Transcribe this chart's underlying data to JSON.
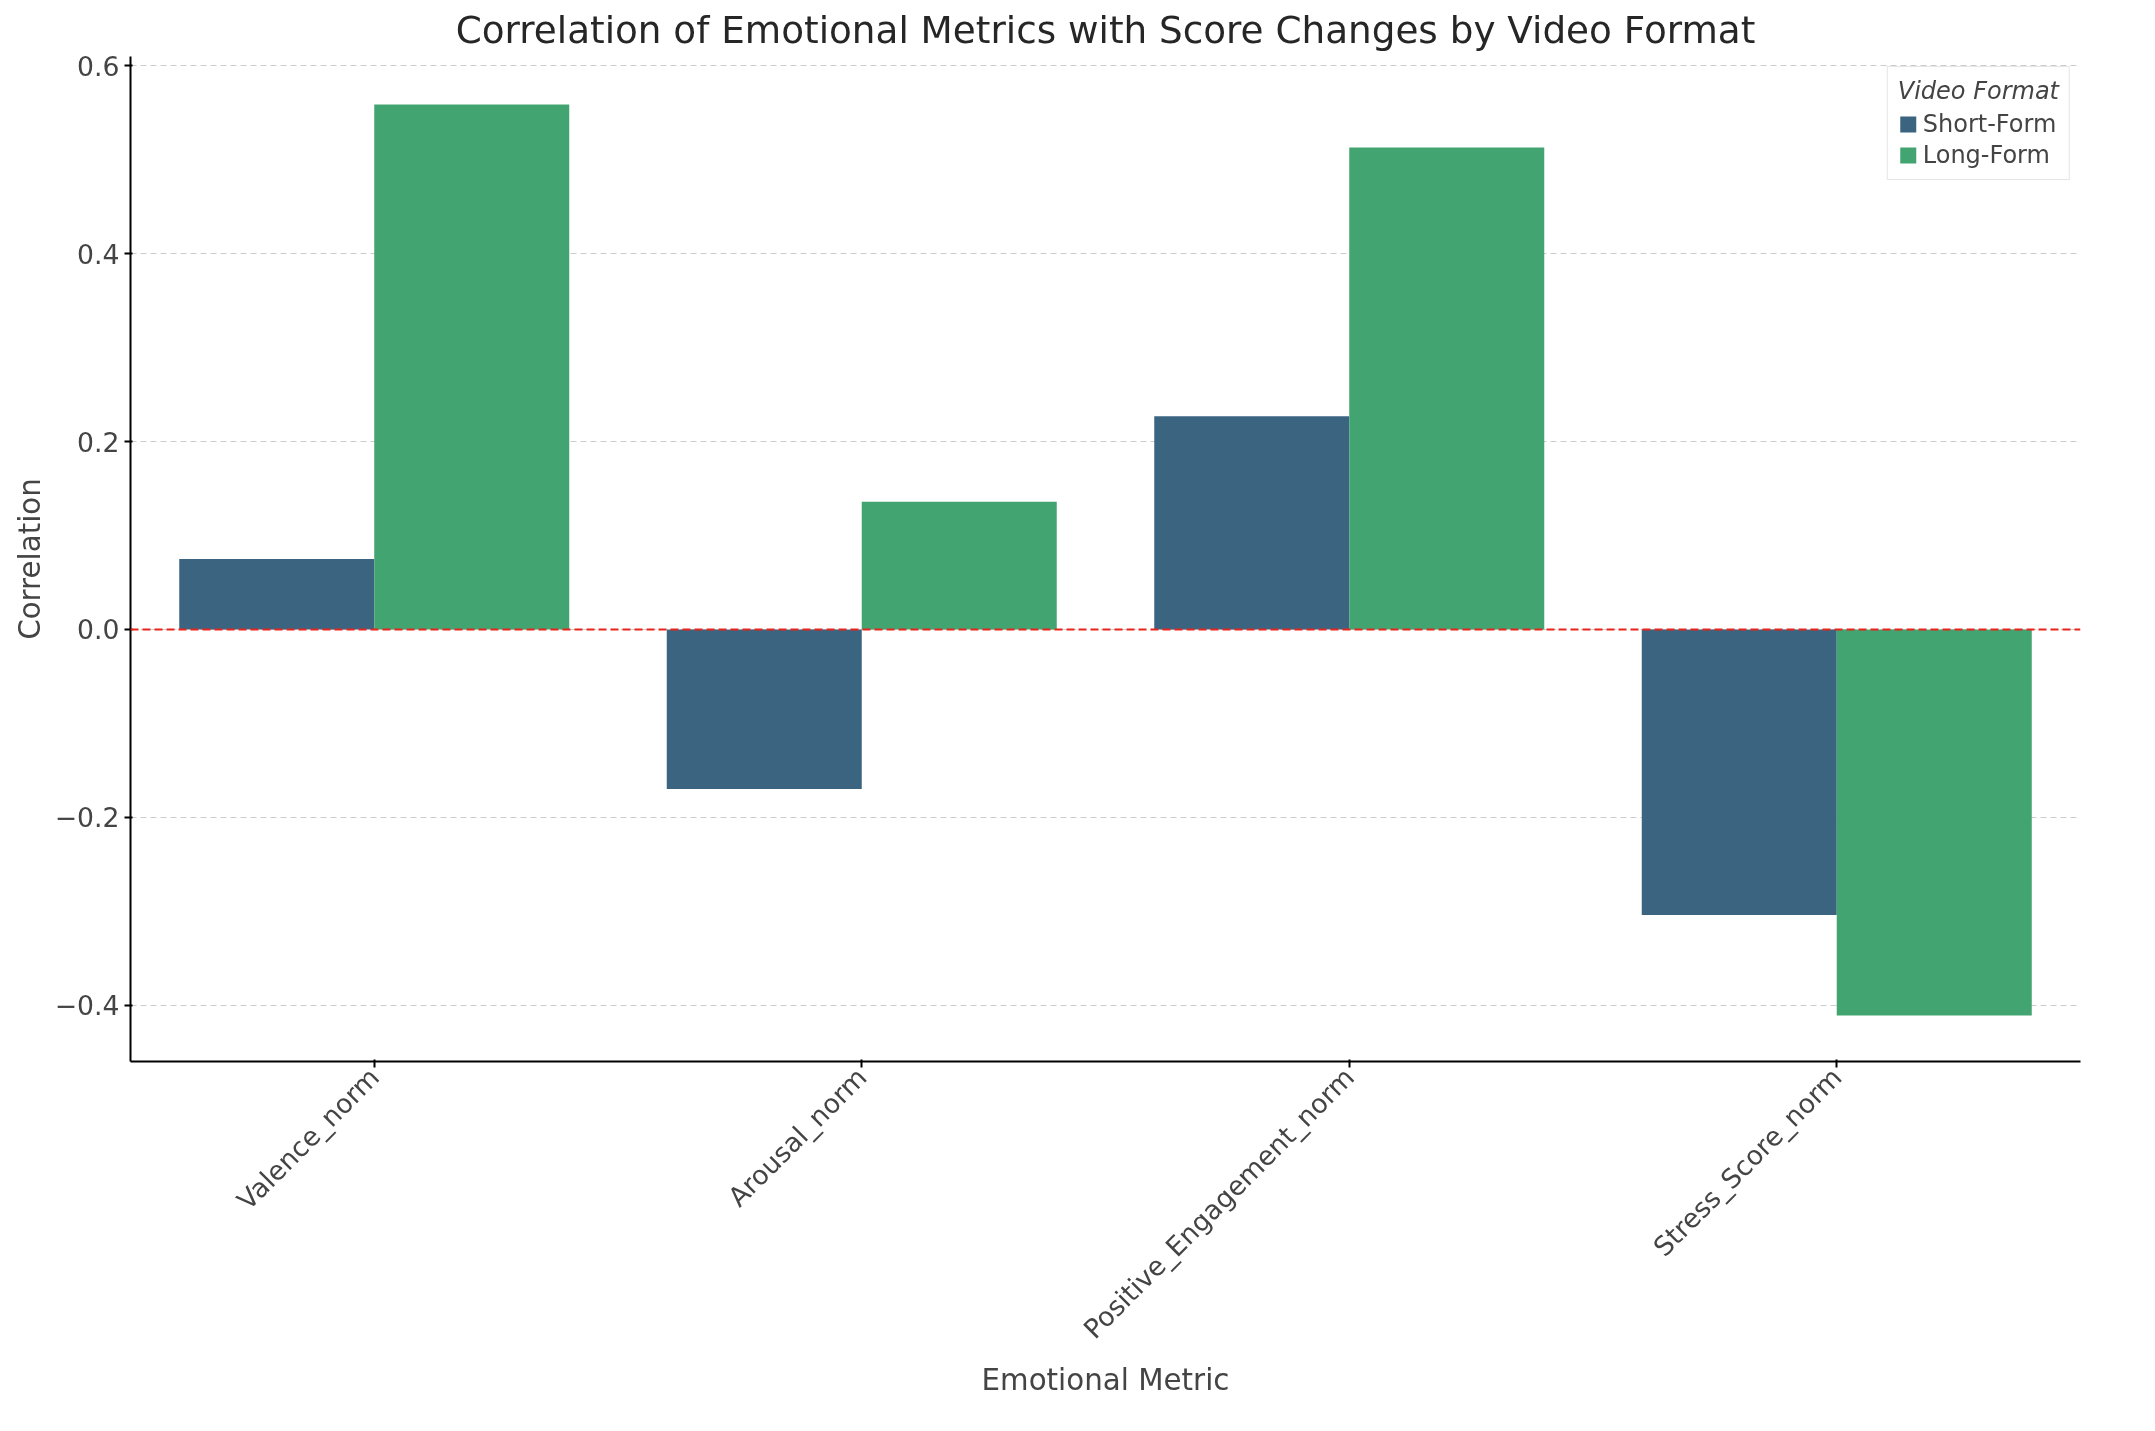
{
  "chart_data": {
    "type": "bar",
    "title": "Correlation of Emotional Metrics with Score Changes by Video Format",
    "xlabel": "Emotional Metric",
    "ylabel": "Correlation",
    "legend_title": "Video Format",
    "categories": [
      "Valence_norm",
      "Arousal_norm",
      "Positive_Engagement_norm",
      "Stress_Score_norm"
    ],
    "series": [
      {
        "name": "Short-Form",
        "color": "#3b6480",
        "values": [
          0.075,
          -0.17,
          0.227,
          -0.304
        ]
      },
      {
        "name": "Long-Form",
        "color": "#42a571",
        "values": [
          0.559,
          0.136,
          0.513,
          -0.411
        ]
      }
    ],
    "ylim": [
      -0.46,
      0.61
    ],
    "yticks": [
      {
        "value": -0.4,
        "label": "−0.4"
      },
      {
        "value": -0.2,
        "label": "−0.2"
      },
      {
        "value": 0.0,
        "label": "0.0"
      },
      {
        "value": 0.2,
        "label": "0.2"
      },
      {
        "value": 0.4,
        "label": "0.4"
      },
      {
        "value": 0.6,
        "label": "0.6"
      }
    ],
    "grid": "y",
    "legend": "top right",
    "ref_lines": [
      {
        "axis": "y",
        "value": 0,
        "color": "#e8251c",
        "line_style": "dashed"
      }
    ]
  }
}
